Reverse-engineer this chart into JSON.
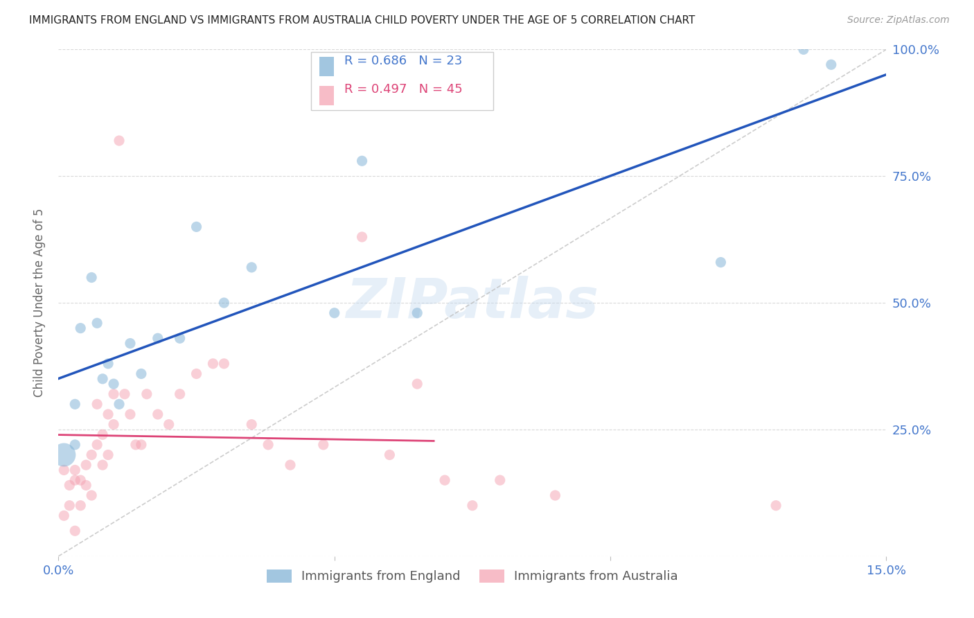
{
  "title": "IMMIGRANTS FROM ENGLAND VS IMMIGRANTS FROM AUSTRALIA CHILD POVERTY UNDER THE AGE OF 5 CORRELATION CHART",
  "source": "Source: ZipAtlas.com",
  "ylabel": "Child Poverty Under the Age of 5",
  "xlim": [
    0.0,
    0.15
  ],
  "ylim": [
    0.0,
    1.0
  ],
  "england_color": "#7bafd4",
  "australia_color": "#f4a0b0",
  "trendline_england_color": "#2255bb",
  "trendline_australia_color": "#dd4477",
  "diagonal_color": "#cccccc",
  "R_england": 0.686,
  "N_england": 23,
  "R_australia": 0.497,
  "N_australia": 45,
  "england_x": [
    0.001,
    0.003,
    0.004,
    0.006,
    0.007,
    0.009,
    0.011,
    0.013,
    0.015,
    0.018,
    0.022,
    0.025,
    0.03,
    0.035,
    0.05,
    0.055,
    0.065,
    0.12,
    0.135,
    0.14,
    0.003,
    0.008,
    0.01
  ],
  "england_y": [
    0.2,
    0.22,
    0.45,
    0.55,
    0.46,
    0.38,
    0.3,
    0.42,
    0.36,
    0.43,
    0.43,
    0.65,
    0.5,
    0.57,
    0.48,
    0.78,
    0.48,
    0.58,
    1.0,
    0.97,
    0.3,
    0.35,
    0.34
  ],
  "england_sizes": [
    400,
    80,
    80,
    80,
    80,
    80,
    80,
    80,
    80,
    80,
    80,
    80,
    80,
    80,
    80,
    80,
    80,
    80,
    80,
    80,
    80,
    80,
    80
  ],
  "australia_x": [
    0.001,
    0.001,
    0.002,
    0.002,
    0.003,
    0.003,
    0.003,
    0.004,
    0.004,
    0.005,
    0.005,
    0.006,
    0.006,
    0.007,
    0.007,
    0.008,
    0.008,
    0.009,
    0.009,
    0.01,
    0.01,
    0.011,
    0.012,
    0.013,
    0.014,
    0.015,
    0.016,
    0.018,
    0.02,
    0.022,
    0.025,
    0.028,
    0.03,
    0.035,
    0.038,
    0.042,
    0.048,
    0.055,
    0.06,
    0.065,
    0.07,
    0.075,
    0.08,
    0.09,
    0.13
  ],
  "australia_y": [
    0.17,
    0.08,
    0.14,
    0.1,
    0.17,
    0.15,
    0.05,
    0.15,
    0.1,
    0.18,
    0.14,
    0.2,
    0.12,
    0.22,
    0.3,
    0.24,
    0.18,
    0.28,
    0.2,
    0.32,
    0.26,
    0.82,
    0.32,
    0.28,
    0.22,
    0.22,
    0.32,
    0.28,
    0.26,
    0.32,
    0.36,
    0.38,
    0.38,
    0.26,
    0.22,
    0.18,
    0.22,
    0.63,
    0.2,
    0.34,
    0.15,
    0.1,
    0.15,
    0.12,
    0.1
  ],
  "australia_sizes": [
    80,
    80,
    80,
    80,
    80,
    80,
    80,
    80,
    80,
    80,
    80,
    80,
    80,
    80,
    80,
    80,
    80,
    80,
    80,
    80,
    80,
    80,
    80,
    80,
    80,
    80,
    80,
    80,
    80,
    80,
    80,
    80,
    80,
    80,
    80,
    80,
    80,
    80,
    80,
    80,
    80,
    80,
    80,
    80,
    80
  ],
  "watermark": "ZIPatlas",
  "legend_england_label": "Immigrants from England",
  "legend_australia_label": "Immigrants from Australia",
  "trendline_eng_x0": 0.0,
  "trendline_eng_x1": 0.15,
  "trendline_aus_x0": 0.0,
  "trendline_aus_x1": 0.068
}
